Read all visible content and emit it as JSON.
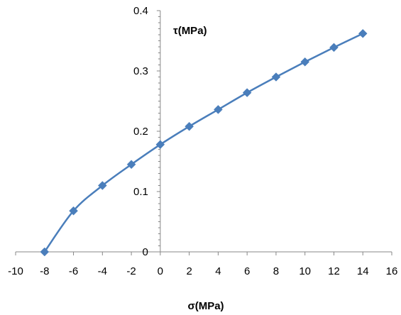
{
  "chart_data": {
    "type": "line",
    "xlabel": "σ(MPa)",
    "ylabel": "τ(MPa)",
    "xlim": [
      -10,
      16
    ],
    "ylim": [
      0,
      0.4
    ],
    "x_ticks": [
      "-10",
      "-8",
      "-6",
      "-4",
      "-2",
      "0",
      "2",
      "4",
      "6",
      "8",
      "10",
      "12",
      "14",
      "16"
    ],
    "y_ticks": [
      "0",
      "0.1",
      "0.2",
      "0.3",
      "0.4"
    ],
    "grid": false,
    "series": [
      {
        "x": [
          -8,
          -6,
          -4,
          -2,
          0,
          2,
          4,
          6,
          8,
          10,
          12,
          14
        ],
        "y": [
          0,
          0.068,
          0.11,
          0.145,
          0.178,
          0.208,
          0.236,
          0.264,
          0.29,
          0.315,
          0.339,
          0.362
        ],
        "color": "#4a7ebb",
        "marker": "diamond",
        "smooth": true
      }
    ]
  }
}
